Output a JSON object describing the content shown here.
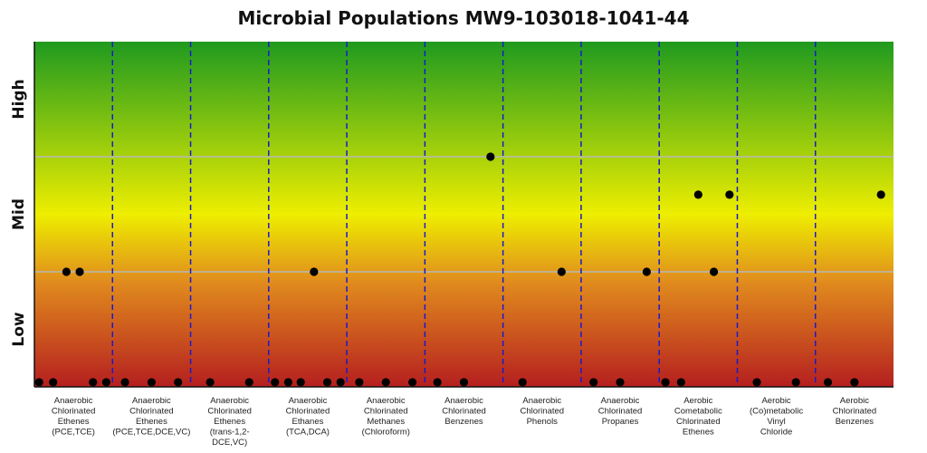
{
  "chart_data": {
    "type": "scatter",
    "title": "Microbial Populations MW9-103018-1041-44",
    "ylim": [
      0,
      3
    ],
    "y_tick_labels": [
      "Low",
      "Mid",
      "High"
    ],
    "grid": "horizontal lines at 1 and 2",
    "background_colors": {
      "bottom": "#b51f1f",
      "lower": "#e08a1e",
      "middle": "#eeee00",
      "top": "#1f9a1f"
    },
    "categories": [
      [
        "Anaerobic",
        "Chlorinated",
        "Ethenes",
        "(PCE,TCE)"
      ],
      [
        "Anaerobic",
        "Chlorinated",
        "Ethenes",
        "(PCE,TCE,DCE,VC)"
      ],
      [
        "Anaerobic",
        "Chlorinated",
        "Ethenes",
        "(trans-1,2-",
        "DCE,VC)"
      ],
      [
        "Anaerobic",
        "Chlorinated",
        "Ethanes",
        "(TCA,DCA)"
      ],
      [
        "Anaerobic",
        "Chlorinated",
        "Methanes",
        "(Chloroform)"
      ],
      [
        "Anaerobic",
        "Chlorinated",
        "Benzenes"
      ],
      [
        "Anaerobic",
        "Chlorinated",
        "Phenols"
      ],
      [
        "Anaerobic",
        "Chlorinated",
        "Propanes"
      ],
      [
        "Aerobic",
        "Cometabolic",
        "Chlorinated",
        "Ethenes"
      ],
      [
        "Aerobic",
        "(Co)metabolic",
        "Vinyl",
        "Chloride"
      ],
      [
        "Aerobic",
        "Chlorinated",
        "Benzenes"
      ]
    ],
    "points": [
      {
        "x": 0.06,
        "y": 0.04
      },
      {
        "x": 0.24,
        "y": 0.04
      },
      {
        "x": 0.41,
        "y": 1.0
      },
      {
        "x": 0.58,
        "y": 1.0
      },
      {
        "x": 0.75,
        "y": 0.04
      },
      {
        "x": 0.92,
        "y": 0.04
      },
      {
        "x": 1.16,
        "y": 0.04
      },
      {
        "x": 1.5,
        "y": 0.04
      },
      {
        "x": 1.84,
        "y": 0.04
      },
      {
        "x": 2.25,
        "y": 0.04
      },
      {
        "x": 2.75,
        "y": 0.04
      },
      {
        "x": 3.08,
        "y": 0.04
      },
      {
        "x": 3.25,
        "y": 0.04
      },
      {
        "x": 3.41,
        "y": 0.04
      },
      {
        "x": 3.58,
        "y": 1.0
      },
      {
        "x": 3.75,
        "y": 0.04
      },
      {
        "x": 3.92,
        "y": 0.04
      },
      {
        "x": 4.16,
        "y": 0.04
      },
      {
        "x": 4.5,
        "y": 0.04
      },
      {
        "x": 4.84,
        "y": 0.04
      },
      {
        "x": 5.16,
        "y": 0.04
      },
      {
        "x": 5.5,
        "y": 0.04
      },
      {
        "x": 5.84,
        "y": 2.0
      },
      {
        "x": 6.25,
        "y": 0.04
      },
      {
        "x": 6.75,
        "y": 1.0
      },
      {
        "x": 7.16,
        "y": 0.04
      },
      {
        "x": 7.5,
        "y": 0.04
      },
      {
        "x": 7.84,
        "y": 1.0
      },
      {
        "x": 8.08,
        "y": 0.04
      },
      {
        "x": 8.28,
        "y": 0.04
      },
      {
        "x": 8.5,
        "y": 1.67
      },
      {
        "x": 8.7,
        "y": 1.0
      },
      {
        "x": 8.9,
        "y": 1.67
      },
      {
        "x": 9.25,
        "y": 0.04
      },
      {
        "x": 9.75,
        "y": 0.04
      },
      {
        "x": 10.16,
        "y": 0.04
      },
      {
        "x": 10.5,
        "y": 0.04
      },
      {
        "x": 10.84,
        "y": 1.67
      }
    ]
  }
}
